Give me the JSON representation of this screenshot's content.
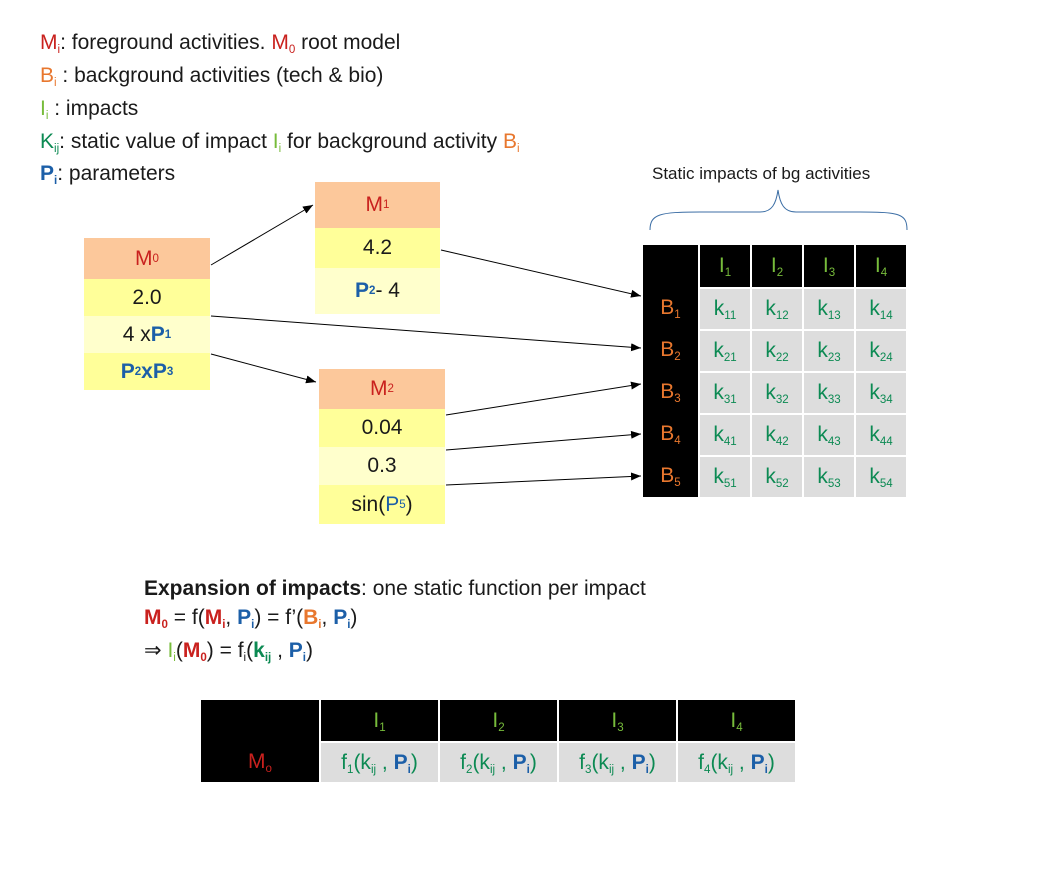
{
  "legend": [
    {
      "symbol": "M",
      "sub": "i",
      "text": ": foreground activities. ",
      "symbol2": "M",
      "sub2": "0",
      "text2": " root model"
    },
    {
      "symbol": "B",
      "sub": "i",
      "text": " : background activities (tech & bio)"
    },
    {
      "symbol": "I",
      "sub": "i",
      "text": " : impacts"
    },
    {
      "symbol": "K",
      "sub": "ij",
      "text": ": static value of impact ",
      "symbol2": "I",
      "sub2": "i",
      "text2": "  for background activity ",
      "symbol3": "B",
      "sub3": "i"
    },
    {
      "symbol": "P",
      "sub": "i",
      "text": ": parameters"
    }
  ],
  "models": {
    "m0": {
      "name": "M",
      "sub": "0",
      "rows": [
        {
          "kind": "plain",
          "text": "2.0"
        },
        {
          "kind": "mulP",
          "pre": "4 x ",
          "p": "P",
          "psub": "1"
        },
        {
          "kind": "P2P3",
          "p1": "P",
          "s1": "2",
          "op": " x ",
          "p2": "P",
          "s2": "3"
        }
      ]
    },
    "m1": {
      "name": "M",
      "sub": "1",
      "rows": [
        {
          "kind": "plain",
          "text": "4.2"
        },
        {
          "kind": "Pminus",
          "p": "P",
          "psub": "2",
          "post": " - 4"
        }
      ]
    },
    "m2": {
      "name": "M",
      "sub": "2",
      "rows": [
        {
          "kind": "plain",
          "text": "0.04"
        },
        {
          "kind": "plain",
          "text": "0.3"
        },
        {
          "kind": "sin",
          "pre": "sin(",
          "p": "P",
          "psub": "5",
          "post": ")"
        }
      ]
    }
  },
  "static_table": {
    "title": "Static impacts of bg activities",
    "impacts": [
      {
        "l": "I",
        "s": "1"
      },
      {
        "l": "I",
        "s": "2"
      },
      {
        "l": "I",
        "s": "3"
      },
      {
        "l": "I",
        "s": "4"
      }
    ],
    "rows": [
      {
        "b": "B",
        "bs": "1",
        "k": [
          "11",
          "12",
          "13",
          "14"
        ]
      },
      {
        "b": "B",
        "bs": "2",
        "k": [
          "21",
          "22",
          "23",
          "24"
        ]
      },
      {
        "b": "B",
        "bs": "3",
        "k": [
          "31",
          "32",
          "33",
          "34"
        ]
      },
      {
        "b": "B",
        "bs": "4",
        "k": [
          "41",
          "42",
          "43",
          "44"
        ]
      },
      {
        "b": "B",
        "bs": "5",
        "k": [
          "51",
          "52",
          "53",
          "54"
        ]
      }
    ],
    "k_letter": "k"
  },
  "expansion": {
    "bold_title": "Expansion of impacts",
    "title_rest": ": one static function per impact",
    "eq1": {
      "M0": "M",
      "M0s": "0",
      "eq": " = f(",
      "Mi": "M",
      "Mis": "i",
      "comma": ", ",
      "Pi": "P",
      "Pis": "i",
      "mid": ") =  f’(",
      "Bi": "B",
      "Bis": "i",
      "comma2": ", ",
      "Pi2": "P",
      "Pis2": "i",
      "end": ")"
    },
    "eq2": {
      "imp": "⇒ ",
      "I": "I",
      "Is": "i",
      "open": "(",
      "M": "M",
      "Ms": "0",
      "close": ") = f",
      "fs": "i",
      "open2": "(",
      "k": "k",
      "ks": "ij",
      "comma": " , ",
      "P": "P",
      "Ps": "i",
      "end": ")"
    }
  },
  "expansion_table": {
    "row_label": "M",
    "row_sub": "o",
    "impacts": [
      {
        "l": "I",
        "s": "1"
      },
      {
        "l": "I",
        "s": "2"
      },
      {
        "l": "I",
        "s": "3"
      },
      {
        "l": "I",
        "s": "4"
      }
    ],
    "funcs": [
      {
        "f": "f",
        "fs": "1"
      },
      {
        "f": "f",
        "fs": "2"
      },
      {
        "f": "f",
        "fs": "3"
      },
      {
        "f": "f",
        "fs": "4"
      }
    ],
    "arg_open": "(k",
    "arg_ks": "ij",
    "arg_sep": " , ",
    "arg_P": "P",
    "arg_Ps": "i",
    "arg_close": ")"
  }
}
